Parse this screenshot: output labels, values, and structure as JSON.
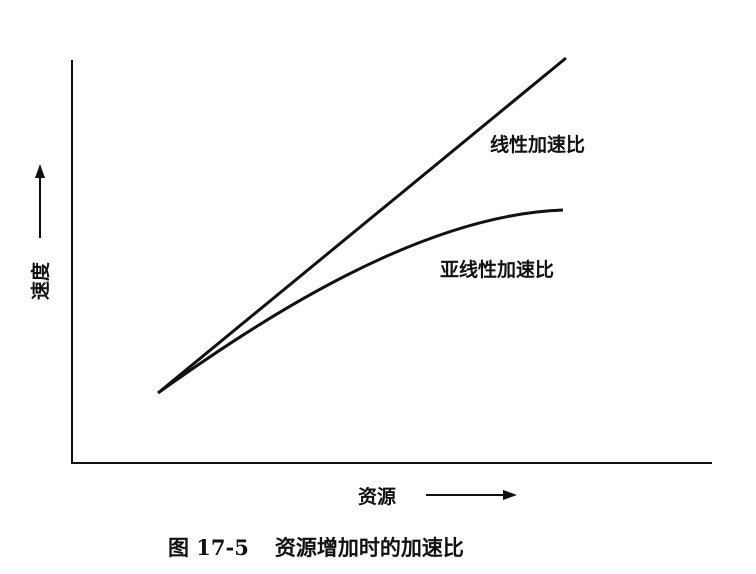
{
  "figure": {
    "caption_number": "图 17-5",
    "caption_title": "资源增加时的加速比",
    "y_axis_label": "速度",
    "x_axis_label": "资源",
    "curves": [
      {
        "name": "线性加速比",
        "shape": "straight-line"
      },
      {
        "name": "亚线性加速比",
        "shape": "concave-curve"
      }
    ],
    "ink_color": "#111111"
  }
}
